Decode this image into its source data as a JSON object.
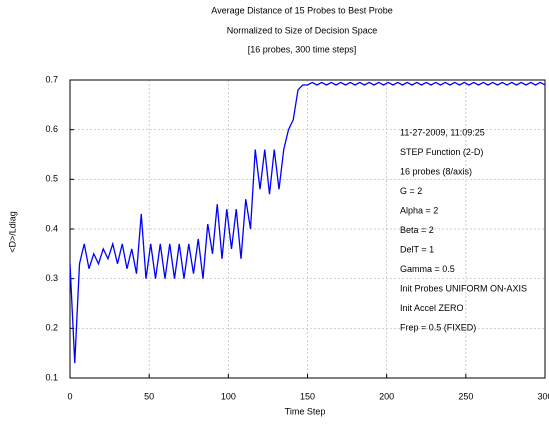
{
  "chart_data": {
    "type": "line",
    "title": "Average Distance of 15 Probes to Best Probe",
    "subtitle": "Normalized to Size of Decision Space",
    "subtitle2": "[16 probes, 300 time steps]",
    "xlabel": "Time Step",
    "ylabel": "<D>/Ldiag",
    "annotations": [
      "11-27-2009, 11:09:25",
      "STEP Function (2-D)",
      "16 probes (8/axis)",
      "G = 2",
      "Alpha = 2",
      "Beta = 2",
      "DelT = 1",
      "Gamma = 0.5",
      "Init Probes UNIFORM ON-AXIS",
      "Init Accel ZERO",
      "Frep = 0.5 (FIXED)"
    ],
    "x": [
      0,
      3,
      6,
      9,
      12,
      15,
      18,
      21,
      24,
      27,
      30,
      33,
      36,
      39,
      42,
      45,
      48,
      51,
      54,
      57,
      60,
      63,
      66,
      69,
      72,
      75,
      78,
      81,
      84,
      87,
      90,
      93,
      96,
      99,
      102,
      105,
      108,
      111,
      114,
      117,
      120,
      123,
      126,
      129,
      132,
      135,
      138,
      141,
      144,
      147,
      150,
      153,
      156,
      159,
      162,
      165,
      168,
      171,
      174,
      177,
      180,
      183,
      186,
      189,
      192,
      195,
      198,
      201,
      204,
      207,
      210,
      213,
      216,
      219,
      222,
      225,
      228,
      231,
      234,
      237,
      240,
      243,
      246,
      249,
      252,
      255,
      258,
      261,
      264,
      267,
      270,
      273,
      276,
      279,
      282,
      285,
      288,
      291,
      294,
      297,
      300
    ],
    "series": [
      {
        "name": "<D>/Ldiag",
        "color": "#0000ff",
        "values": [
          0.33,
          0.13,
          0.33,
          0.37,
          0.32,
          0.35,
          0.33,
          0.36,
          0.34,
          0.37,
          0.33,
          0.37,
          0.32,
          0.36,
          0.31,
          0.43,
          0.3,
          0.37,
          0.3,
          0.37,
          0.3,
          0.37,
          0.3,
          0.37,
          0.3,
          0.37,
          0.31,
          0.38,
          0.3,
          0.41,
          0.35,
          0.45,
          0.34,
          0.44,
          0.36,
          0.44,
          0.34,
          0.46,
          0.4,
          0.56,
          0.48,
          0.56,
          0.47,
          0.56,
          0.48,
          0.56,
          0.6,
          0.62,
          0.68,
          0.69,
          0.69,
          0.695,
          0.69,
          0.695,
          0.69,
          0.695,
          0.69,
          0.695,
          0.69,
          0.695,
          0.69,
          0.695,
          0.69,
          0.695,
          0.69,
          0.695,
          0.69,
          0.695,
          0.69,
          0.695,
          0.69,
          0.695,
          0.69,
          0.695,
          0.69,
          0.695,
          0.69,
          0.695,
          0.69,
          0.695,
          0.69,
          0.695,
          0.69,
          0.695,
          0.69,
          0.695,
          0.69,
          0.695,
          0.69,
          0.695,
          0.69,
          0.695,
          0.69,
          0.695,
          0.69,
          0.695,
          0.69,
          0.695,
          0.69,
          0.695,
          0.69
        ]
      }
    ],
    "xlim": [
      0,
      300
    ],
    "xticks": [
      0,
      50,
      100,
      150,
      200,
      250,
      300
    ],
    "ylim": [
      0.1,
      0.7
    ],
    "yticks": [
      0.1,
      0.2,
      0.3,
      0.4,
      0.5,
      0.6,
      0.7
    ],
    "grid": true
  }
}
